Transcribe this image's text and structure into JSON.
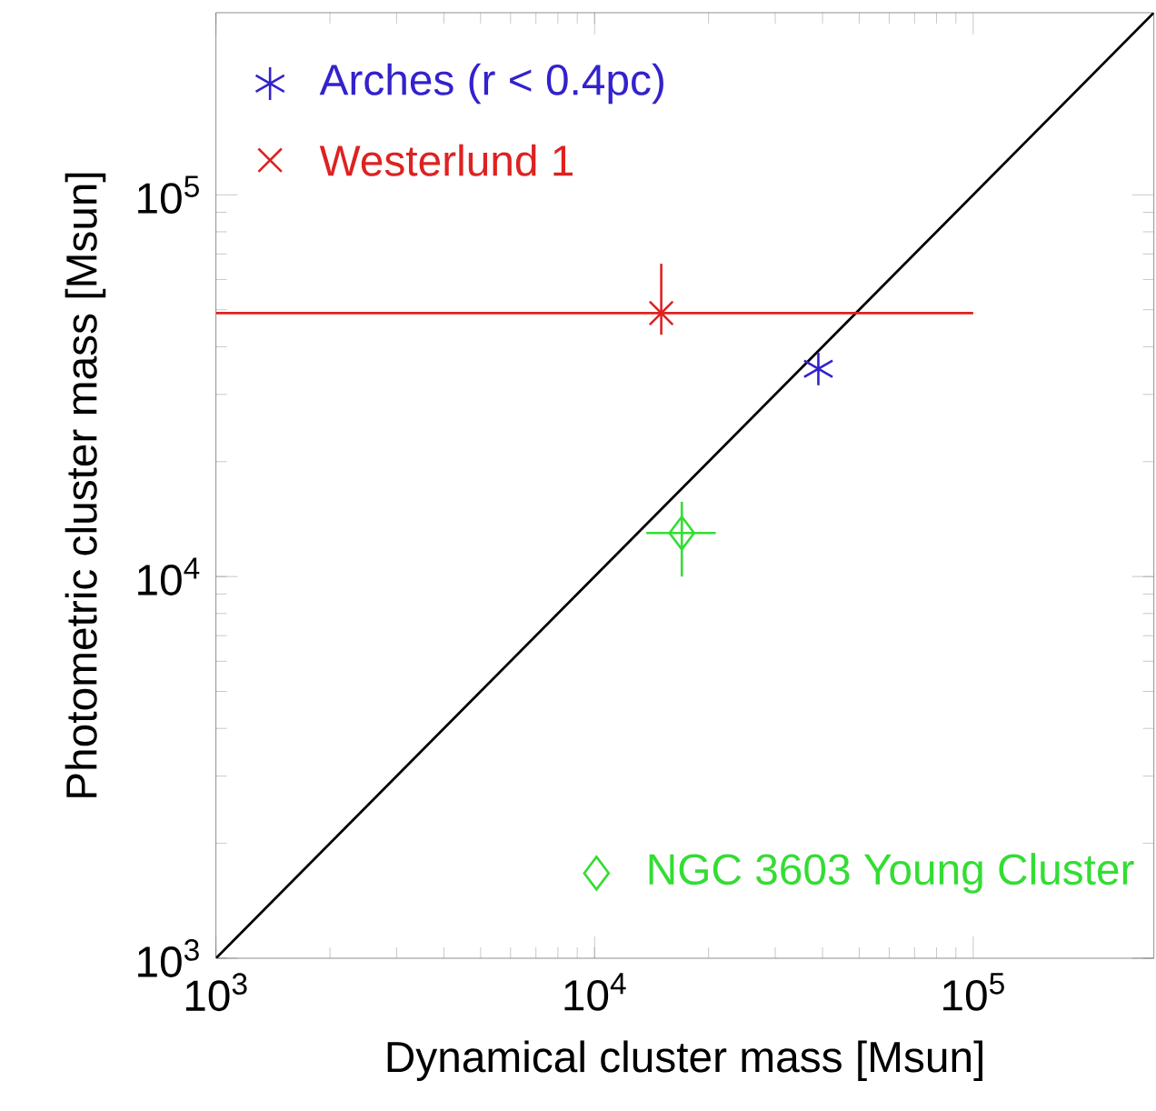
{
  "chart_data": {
    "type": "scatter",
    "xlabel": "Dynamical cluster mass [Msun]",
    "ylabel": "Photometric cluster mass [Msun]",
    "log": "xy",
    "xlim": [
      1000,
      300000
    ],
    "ylim": [
      1000,
      300000
    ],
    "xticks": [
      {
        "value": 1000,
        "label": "10$^{3}$"
      },
      {
        "value": 10000,
        "label": "10$^{4}$"
      },
      {
        "value": 100000,
        "label": "10$^{5}$"
      }
    ],
    "yticks": [
      {
        "value": 1000,
        "label": "10$^{3}$"
      },
      {
        "value": 10000,
        "label": "10$^{4}$"
      },
      {
        "value": 100000,
        "label": "10$^{5}$"
      }
    ],
    "legend": "top left",
    "series": [
      {
        "type": "line",
        "color": "#000000",
        "x": [
          1000,
          300000
        ],
        "values": [
          1000,
          300000
        ],
        "marker": "none"
      },
      {
        "name": "Arches (r < 0.4pc)",
        "color": "#3322cc",
        "x": [
          39000
        ],
        "values": [
          35000
        ]
      },
      {
        "name": "Westerlund 1",
        "color": "#dd2222",
        "x": [
          15000
        ],
        "values": [
          49000
        ],
        "marker": "cross",
        "errors": [
          [
            43000,
            66000
          ]
        ],
        "xerrors": [
          [
            1000,
            100000
          ]
        ]
      },
      {
        "name": "NGC 3603 Young Cluster",
        "color": "#33dd33",
        "x": [
          17000
        ],
        "values": [
          13000
        ],
        "marker": "diamond",
        "errors": [
          [
            10000,
            15700
          ]
        ],
        "xerrors": [
          [
            13700,
            20900
          ]
        ]
      }
    ]
  }
}
